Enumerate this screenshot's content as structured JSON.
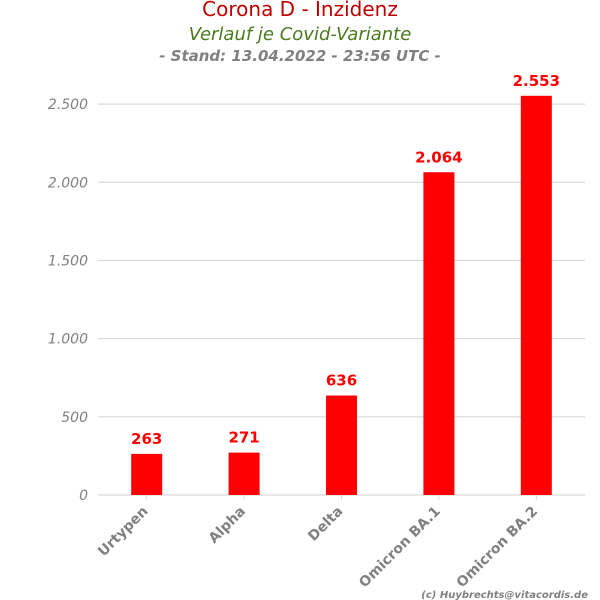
{
  "header": {
    "title": "Corona D - Inzidenz",
    "subtitle": "Verlauf je Covid-Variante",
    "stand": "- Stand: 13.04.2022 - 23:56 UTC -"
  },
  "credit": "(c) Huybrechts@vitacordis.de",
  "colors": {
    "bar": "#ff0000",
    "data_label": "#ff0000",
    "title": "#c00000",
    "subtitle": "#4a7a1e",
    "axis_text": "#808080",
    "grid": "#d9d9d9"
  },
  "chart_data": {
    "type": "bar",
    "title": "Corona D - Inzidenz",
    "subtitle": "Verlauf je Covid-Variante",
    "categories": [
      "Urtypen",
      "Alpha",
      "Delta",
      "Omicron BA.1",
      "Omicron BA.2"
    ],
    "values": [
      263,
      271,
      636,
      2064,
      2553
    ],
    "value_labels": [
      "263",
      "271",
      "636",
      "2.064",
      "2.553"
    ],
    "yticks": [
      0,
      500,
      1000,
      1500,
      2000,
      2500
    ],
    "ytick_labels": [
      "0",
      "500",
      "1.000",
      "1.500",
      "2.000",
      "2.500"
    ],
    "ylim": [
      0,
      2750
    ],
    "grid": "horizontal",
    "legend": "none"
  }
}
